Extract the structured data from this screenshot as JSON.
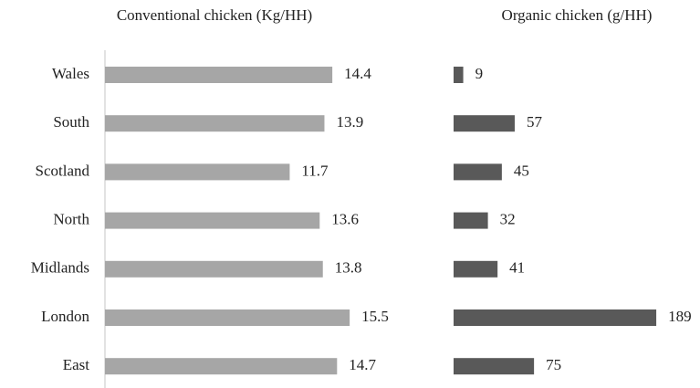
{
  "chart_data": {
    "type": "bar",
    "categories": [
      "Wales",
      "South",
      "Scotland",
      "North",
      "Midlands",
      "London",
      "East"
    ],
    "series": [
      {
        "name": "Conventional chicken (Kg/HH)",
        "color": "#a6a6a6",
        "values": [
          14.4,
          13.9,
          11.7,
          13.6,
          13.8,
          15.5,
          14.7
        ],
        "xlim": [
          0,
          20
        ]
      },
      {
        "name": "Organic chicken (g/HH)",
        "color": "#595959",
        "values": [
          9,
          57,
          45,
          32,
          41,
          189,
          75
        ],
        "xlim": [
          0,
          200
        ]
      }
    ]
  }
}
